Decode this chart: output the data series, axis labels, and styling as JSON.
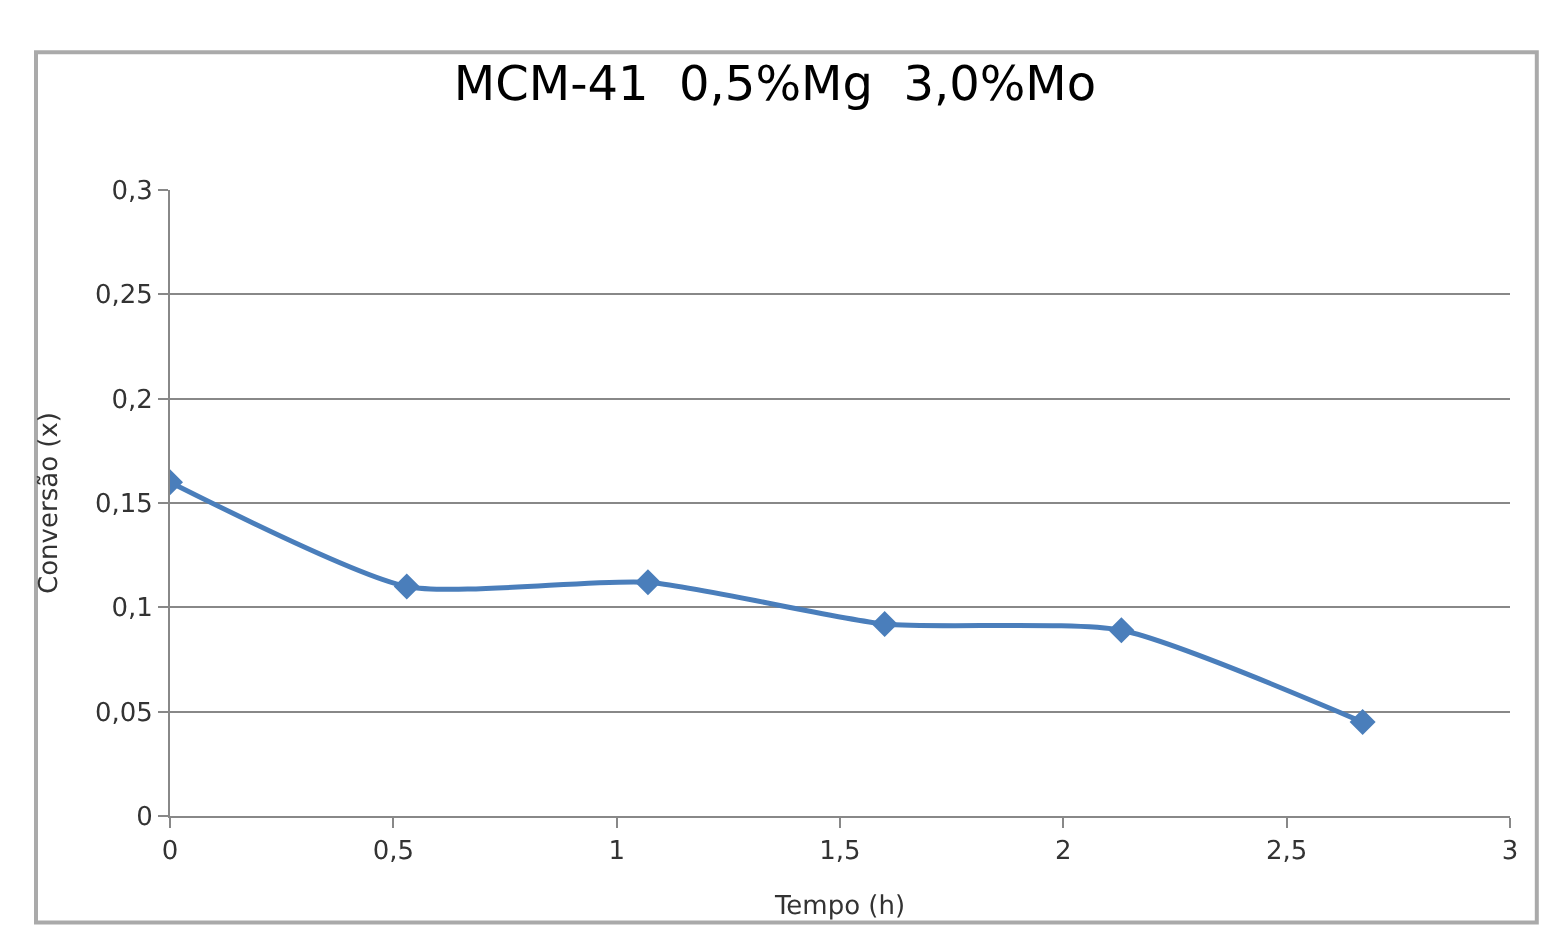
{
  "chart_data": {
    "type": "line",
    "title": "MCM-41  0,5%Mg  3,0%Mo",
    "xlabel": "Tempo (h)",
    "ylabel": "Conversão (x)",
    "x": [
      0,
      0.53,
      1.07,
      1.6,
      2.13,
      2.67
    ],
    "series": [
      {
        "color": "#4a7ebb",
        "values": [
          0.16,
          0.11,
          0.112,
          0.092,
          0.089,
          0.045
        ]
      }
    ],
    "xlim": [
      0,
      3
    ],
    "xticks": [
      0,
      {
        "value": 0.5,
        "label": "0,5"
      },
      1,
      {
        "value": 1.5,
        "label": "1,5"
      },
      2,
      {
        "value": 2.5,
        "label": "2,5"
      },
      3
    ],
    "ylim": [
      0,
      0.3
    ],
    "yticks": [
      0,
      {
        "value": 0.05,
        "label": "0,05"
      },
      {
        "value": 0.1,
        "label": "0,1"
      },
      {
        "value": 0.15,
        "label": "0,15"
      },
      {
        "value": 0.2,
        "label": "0,2"
      },
      {
        "value": 0.25,
        "label": "0,25"
      },
      {
        "value": 0.3,
        "label": "0,3"
      }
    ],
    "grid": "y",
    "marker": "diamond",
    "line_style": "solid",
    "legend": false
  }
}
